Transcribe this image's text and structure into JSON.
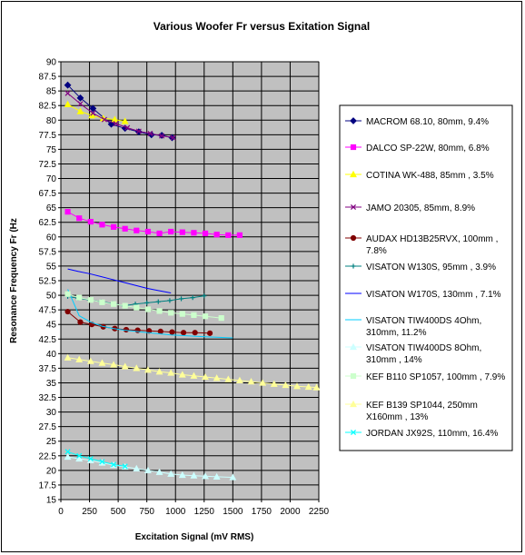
{
  "chart_data": {
    "type": "line",
    "title": "Various Woofer Fr versus Exitation Signal",
    "xlabel": "Excitation Signal (mV RMS)",
    "ylabel": "Resonance Frequency Fr (Hz",
    "xlim": [
      0,
      2250
    ],
    "ylim": [
      15,
      90
    ],
    "x_ticks": [
      0,
      250,
      500,
      750,
      1000,
      1250,
      1500,
      1750,
      2000,
      2250
    ],
    "y_ticks": [
      15,
      17.5,
      20,
      22.5,
      25,
      27.5,
      30,
      32.5,
      35,
      37.5,
      40,
      42.5,
      45,
      47.5,
      50,
      52.5,
      55,
      57.5,
      60,
      62.5,
      65,
      67.5,
      70,
      72.5,
      75,
      77.5,
      80,
      82.5,
      85,
      87.5,
      90
    ],
    "grid": "vertical and horizontal",
    "plot_background": "#c0c0c0",
    "legend_position": "right",
    "series": [
      {
        "name": "MACROM 68.10, 80mm, 9.4%",
        "color": "#000080",
        "marker": "diamond",
        "x": [
          60,
          170,
          280,
          440,
          560,
          680,
          790,
          880,
          970
        ],
        "y": [
          86,
          83.8,
          82,
          79.3,
          78.6,
          78,
          77.5,
          77.4,
          77
        ]
      },
      {
        "name": "DALCO SP-22W, 80mm, 6.8%",
        "color": "#ff00ff",
        "marker": "square",
        "x": [
          60,
          160,
          260,
          360,
          460,
          560,
          660,
          760,
          860,
          960,
          1060,
          1160,
          1260,
          1360,
          1460,
          1560
        ],
        "y": [
          64.3,
          63.2,
          62.6,
          62.1,
          61.7,
          61.4,
          61.1,
          60.9,
          60.6,
          60.9,
          60.8,
          60.7,
          60.6,
          60.4,
          60.3,
          60.3
        ]
      },
      {
        "name": "COTINA WK-488, 85mm , 3.5%",
        "color": "#ffff00",
        "marker": "triangle",
        "x": [
          60,
          170,
          270,
          370,
          470,
          560
        ],
        "y": [
          82.7,
          81.5,
          80.8,
          80.3,
          80.1,
          79.8
        ]
      },
      {
        "name": "JAMO 20305, 85mm, 8.9%",
        "color": "#800080",
        "marker": "x",
        "x": [
          60,
          170,
          280,
          380,
          480,
          580,
          680,
          780,
          880,
          980
        ],
        "y": [
          84.6,
          82.8,
          81.2,
          80.1,
          79.4,
          78.7,
          78.1,
          77.7,
          77.3,
          77
        ]
      },
      {
        "name": "AUDAX HD13B25RVX, 100mm , 7.8%",
        "color": "#800000",
        "marker": "circle",
        "x": [
          60,
          170,
          270,
          370,
          470,
          570,
          670,
          770,
          870,
          970,
          1070,
          1170,
          1300
        ],
        "y": [
          47.2,
          45.4,
          45,
          44.6,
          44.3,
          44.1,
          44,
          43.9,
          43.8,
          43.7,
          43.6,
          43.6,
          43.5
        ]
      },
      {
        "name": "VISATON W130S, 95mm , 3.9%",
        "color": "#008080",
        "marker": "plus",
        "x": [
          60,
          150,
          250,
          350,
          450,
          550,
          650,
          750,
          850,
          950,
          1050,
          1150,
          1250
        ],
        "y": [
          49.8,
          49.5,
          49.2,
          48.9,
          48.6,
          48.2,
          48.5,
          48.7,
          48.9,
          49.1,
          49.4,
          49.6,
          49.9
        ]
      },
      {
        "name": "VISATON W170S, 130mm , 7.1%",
        "color": "#0000ff",
        "marker": "none",
        "x": [
          60,
          150,
          250,
          350,
          450,
          550,
          650,
          750,
          850,
          960
        ],
        "y": [
          54.5,
          54.1,
          53.7,
          53.2,
          52.7,
          52.2,
          51.7,
          51.2,
          50.8,
          50.4
        ]
      },
      {
        "name": "VISATON TIW400DS 4Ohm, 310mm, 11.2%",
        "color": "#00ccff",
        "marker": "none",
        "x": [
          60,
          160,
          260,
          360,
          460,
          560,
          660,
          760,
          860,
          960,
          1060,
          1160,
          1260,
          1360,
          1500
        ],
        "y": [
          51,
          46.5,
          45.4,
          44.7,
          44.3,
          44,
          43.8,
          43.6,
          43.4,
          43.2,
          43.1,
          43,
          42.9,
          42.8,
          42.7
        ]
      },
      {
        "name": "VISATON TIW400DS 8Ohm, 310mm , 14%",
        "color": "#ccffff",
        "marker": "triangle",
        "x": [
          60,
          160,
          260,
          360,
          460,
          560,
          660,
          760,
          860,
          960,
          1060,
          1160,
          1260,
          1360,
          1500
        ],
        "y": [
          22.3,
          22,
          21.7,
          21.3,
          20.9,
          20.6,
          20.3,
          20,
          19.7,
          19.4,
          19.2,
          19.1,
          19,
          18.9,
          18.8
        ]
      },
      {
        "name": "KEF B110 SP1057, 100mm , 7.9%",
        "color": "#ccffcc",
        "marker": "square",
        "x": [
          60,
          160,
          260,
          360,
          460,
          560,
          660,
          760,
          860,
          960,
          1060,
          1160,
          1260,
          1400
        ],
        "y": [
          50.2,
          49.6,
          49.2,
          48.8,
          48.5,
          48.2,
          47.9,
          47.6,
          47.3,
          47,
          46.8,
          46.6,
          46.4,
          46.1
        ]
      },
      {
        "name": "KEF B139 SP1044, 250mm X160mm , 13%",
        "color": "#ffff99",
        "marker": "triangle",
        "x": [
          60,
          160,
          260,
          360,
          460,
          560,
          660,
          760,
          860,
          960,
          1060,
          1160,
          1260,
          1360,
          1460,
          1560,
          1660,
          1760,
          1860,
          1960,
          2060,
          2160,
          2230
        ],
        "y": [
          39.3,
          39,
          38.7,
          38.4,
          38.1,
          37.8,
          37.5,
          37.2,
          36.9,
          36.7,
          36.4,
          36.2,
          36,
          35.8,
          35.6,
          35.4,
          35.2,
          35,
          34.8,
          34.6,
          34.4,
          34.3,
          34.2
        ]
      },
      {
        "name": "JORDAN JX92S, 110mm, 16.4%",
        "color": "#00ffff",
        "marker": "x",
        "x": [
          60,
          160,
          260,
          360,
          460,
          560
        ],
        "y": [
          23.2,
          22.5,
          22,
          21.5,
          21,
          20.7
        ]
      }
    ]
  }
}
